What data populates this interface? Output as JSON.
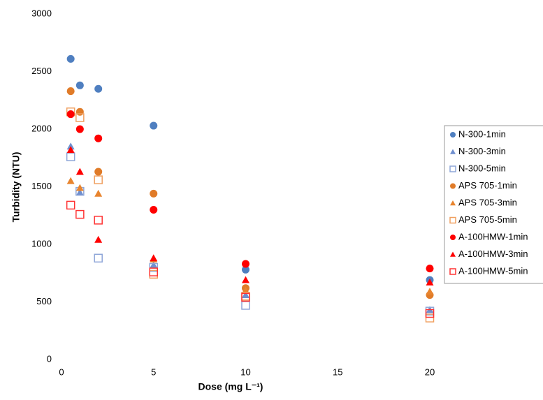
{
  "chart_data": {
    "type": "scatter",
    "xlabel": "Dose (mg L⁻¹)",
    "ylabel": "Turbidity (NTU)",
    "x": [
      0.5,
      1,
      2,
      5,
      10,
      20
    ],
    "xlim": [
      0,
      20
    ],
    "xticks": [
      0,
      5,
      10,
      15,
      20
    ],
    "ylim": [
      0,
      3000
    ],
    "yticks": [
      0,
      500,
      1000,
      1500,
      2000,
      2500,
      3000
    ],
    "grid": false,
    "legend": "right",
    "series": [
      {
        "name": "N-300-1min",
        "color": "#4f7fc0",
        "marker": "circle",
        "filled": true,
        "values": [
          2610,
          2380,
          2350,
          2030,
          780,
          690
        ]
      },
      {
        "name": "N-300-3min",
        "color": "#6f8fcf",
        "marker": "triangle",
        "filled": true,
        "values": [
          1850,
          1450,
          null,
          820,
          560,
          430
        ]
      },
      {
        "name": "N-300-5min",
        "color": "#8ea6d8",
        "marker": "square",
        "filled": false,
        "values": [
          1760,
          1460,
          880,
          800,
          470,
          420
        ]
      },
      {
        "name": "APS 705-1min",
        "color": "#e07b28",
        "marker": "circle",
        "filled": true,
        "values": [
          2330,
          2150,
          1630,
          1440,
          620,
          560
        ]
      },
      {
        "name": "APS 705-3min",
        "color": "#e8842e",
        "marker": "triangle",
        "filled": true,
        "values": [
          1550,
          1490,
          1440,
          870,
          600,
          590
        ]
      },
      {
        "name": "APS 705-5min",
        "color": "#f0a060",
        "marker": "square",
        "filled": false,
        "values": [
          2150,
          2100,
          1560,
          740,
          550,
          360
        ]
      },
      {
        "name": "A-100HMW-1min",
        "color": "#ff0000",
        "marker": "circle",
        "filled": true,
        "values": [
          2130,
          2000,
          1920,
          1300,
          830,
          790
        ]
      },
      {
        "name": "A-100HMW-3min",
        "color": "#ff0000",
        "marker": "triangle",
        "filled": true,
        "values": [
          1820,
          1630,
          1040,
          880,
          690,
          670
        ]
      },
      {
        "name": "A-100HMW-5min",
        "color": "#ff3333",
        "marker": "square",
        "filled": false,
        "values": [
          1340,
          1260,
          1210,
          760,
          540,
          400
        ]
      }
    ]
  }
}
